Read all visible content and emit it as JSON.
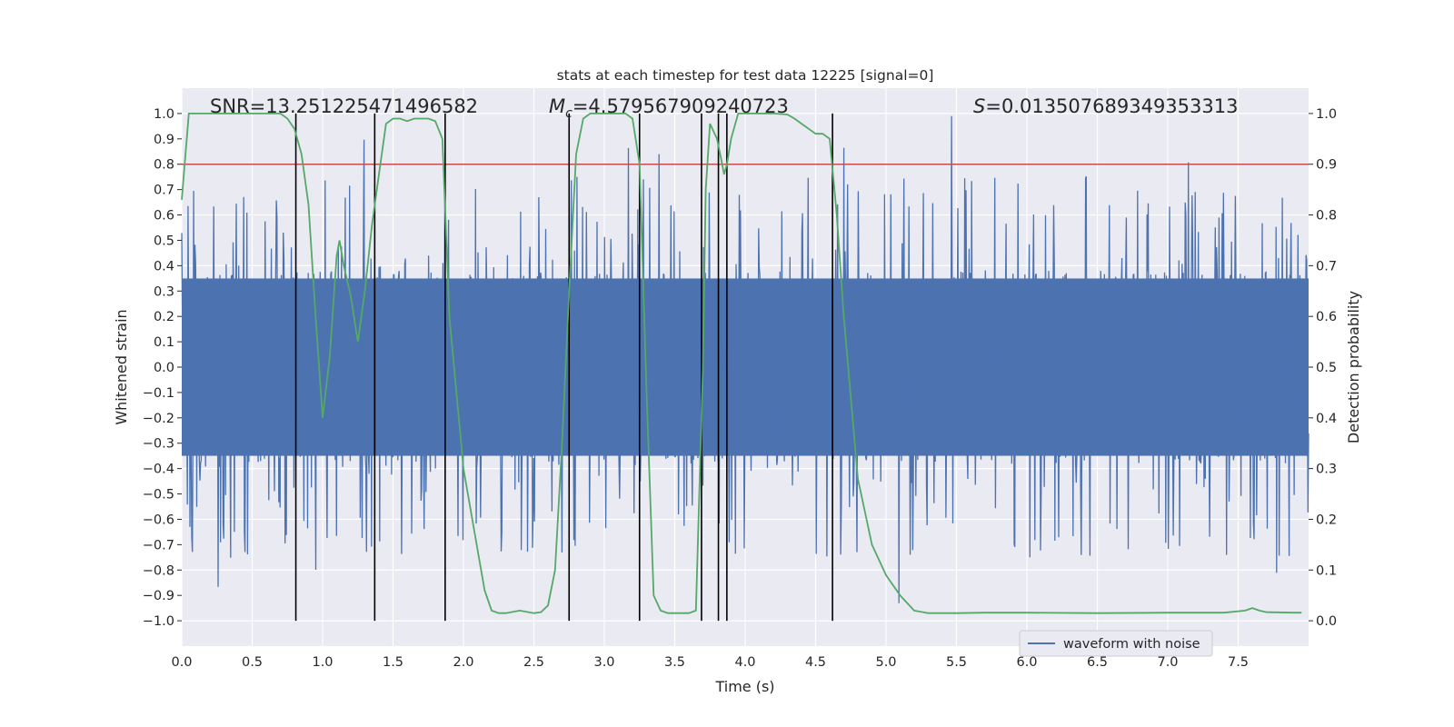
{
  "chart_data": {
    "type": "line",
    "title": "stats at each timestep for test data 12225 [signal=0]",
    "xlabel": "Time (s)",
    "ylabel": "Whitened strain",
    "y2label": "Detection probability",
    "xlim": [
      0.0,
      8.0
    ],
    "ylim": [
      -1.1,
      1.1
    ],
    "y2lim": [
      -0.05,
      1.05
    ],
    "xticks": [
      "0.0",
      "0.5",
      "1.0",
      "1.5",
      "2.0",
      "2.5",
      "3.0",
      "3.5",
      "4.0",
      "4.5",
      "5.0",
      "5.5",
      "6.0",
      "6.5",
      "7.0",
      "7.5"
    ],
    "xtick_values": [
      0.0,
      0.5,
      1.0,
      1.5,
      2.0,
      2.5,
      3.0,
      3.5,
      4.0,
      4.5,
      5.0,
      5.5,
      6.0,
      6.5,
      7.0,
      7.5
    ],
    "yticks": [
      "1.0",
      "0.9",
      "0.8",
      "0.7",
      "0.6",
      "0.5",
      "0.4",
      "0.3",
      "0.2",
      "0.1",
      "0.0",
      "−0.1",
      "−0.2",
      "−0.3",
      "−0.4",
      "−0.5",
      "−0.6",
      "−0.7",
      "−0.8",
      "−0.9",
      "−1.0"
    ],
    "ytick_values": [
      1.0,
      0.9,
      0.8,
      0.7,
      0.6,
      0.5,
      0.4,
      0.3,
      0.2,
      0.1,
      0.0,
      -0.1,
      -0.2,
      -0.3,
      -0.4,
      -0.5,
      -0.6,
      -0.7,
      -0.8,
      -0.9,
      -1.0
    ],
    "y2ticks": [
      "1.0",
      "0.9",
      "0.8",
      "0.7",
      "0.6",
      "0.5",
      "0.4",
      "0.3",
      "0.2",
      "0.1",
      "0.0"
    ],
    "y2tick_values": [
      1.0,
      0.9,
      0.8,
      0.7,
      0.6,
      0.5,
      0.4,
      0.3,
      0.2,
      0.1,
      0.0
    ],
    "annotations": {
      "snr": "SNR=13.251225471496582",
      "mc_symbol": "M",
      "mc_subscript": "c",
      "mc_value": "=4.579567909240723",
      "s_symbol": "S",
      "s_value": "=0.013507689349353313"
    },
    "threshold": {
      "value": 0.9,
      "axis": "y2",
      "color": "#c44e52"
    },
    "vertical_lines": [
      0.81,
      1.37,
      1.87,
      2.75,
      3.25,
      3.69,
      3.81,
      3.87,
      4.62
    ],
    "vertical_line_range": [
      -1.0,
      1.0
    ],
    "series": [
      {
        "name": "waveform with noise",
        "axis": "y",
        "color": "#4c72b0",
        "kind": "noise",
        "envelope": 0.38,
        "peak": 1.0,
        "sample_count": 1800
      },
      {
        "name": "detection probability",
        "axis": "y2",
        "color": "#55a868",
        "x": [
          0.0,
          0.05,
          0.1,
          0.2,
          0.3,
          0.4,
          0.5,
          0.6,
          0.7,
          0.75,
          0.8,
          0.85,
          0.9,
          0.95,
          1.0,
          1.05,
          1.1,
          1.12,
          1.15,
          1.2,
          1.25,
          1.3,
          1.35,
          1.4,
          1.45,
          1.5,
          1.55,
          1.6,
          1.65,
          1.7,
          1.75,
          1.8,
          1.85,
          1.9,
          2.0,
          2.1,
          2.15,
          2.2,
          2.25,
          2.3,
          2.4,
          2.5,
          2.55,
          2.6,
          2.65,
          2.7,
          2.75,
          2.8,
          2.85,
          2.9,
          3.0,
          3.1,
          3.15,
          3.2,
          3.25,
          3.3,
          3.35,
          3.4,
          3.45,
          3.5,
          3.6,
          3.65,
          3.7,
          3.72,
          3.75,
          3.8,
          3.83,
          3.85,
          3.87,
          3.9,
          3.95,
          4.0,
          4.1,
          4.2,
          4.3,
          4.35,
          4.4,
          4.45,
          4.5,
          4.55,
          4.6,
          4.65,
          4.7,
          4.8,
          4.9,
          5.0,
          5.1,
          5.2,
          5.3,
          5.5,
          5.7,
          5.9,
          6.0,
          6.5,
          7.0,
          7.2,
          7.4,
          7.55,
          7.6,
          7.65,
          7.7,
          7.9,
          7.95
        ],
        "values": [
          0.83,
          1.0,
          1.0,
          1.0,
          1.0,
          1.0,
          1.0,
          1.0,
          1.0,
          0.99,
          0.97,
          0.92,
          0.82,
          0.6,
          0.4,
          0.52,
          0.72,
          0.75,
          0.7,
          0.64,
          0.55,
          0.65,
          0.78,
          0.88,
          0.98,
          0.99,
          0.99,
          0.985,
          0.99,
          0.99,
          0.99,
          0.985,
          0.95,
          0.6,
          0.3,
          0.14,
          0.06,
          0.02,
          0.015,
          0.015,
          0.02,
          0.015,
          0.017,
          0.03,
          0.1,
          0.35,
          0.65,
          0.92,
          0.99,
          1.0,
          1.0,
          1.0,
          1.0,
          0.99,
          0.9,
          0.45,
          0.05,
          0.02,
          0.015,
          0.015,
          0.015,
          0.02,
          0.5,
          0.85,
          0.98,
          0.95,
          0.91,
          0.88,
          0.9,
          0.95,
          1.0,
          1.0,
          1.0,
          1.0,
          0.998,
          0.99,
          0.98,
          0.97,
          0.96,
          0.96,
          0.95,
          0.8,
          0.6,
          0.28,
          0.15,
          0.09,
          0.05,
          0.02,
          0.015,
          0.015,
          0.016,
          0.016,
          0.016,
          0.015,
          0.016,
          0.016,
          0.016,
          0.02,
          0.025,
          0.02,
          0.017,
          0.016,
          0.016
        ]
      }
    ],
    "legend": {
      "position": "bottom-right",
      "entries": [
        "waveform with noise"
      ]
    }
  }
}
